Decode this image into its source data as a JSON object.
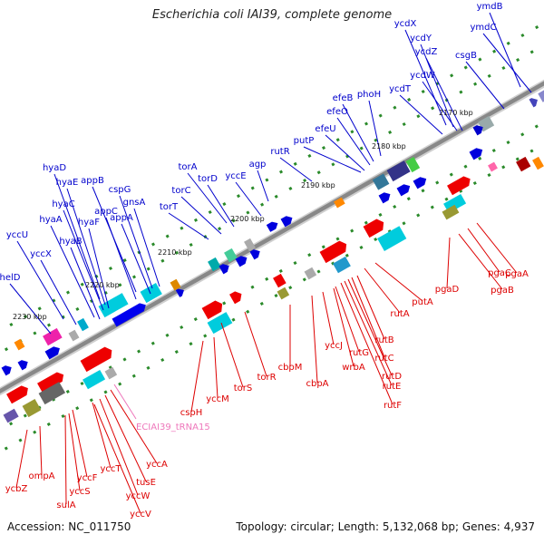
{
  "title": "Escherichia coli IAI39, complete genome",
  "footer": {
    "accession": "Accession: NC_011750",
    "summary": "Topology: circular; Length: 5,132,068 bp; Genes: 4,937"
  },
  "colors": {
    "forward_label": "#0000cc",
    "reverse_label": "#dd0000",
    "trna_label": "#ee77bb",
    "backbone": "#888888"
  },
  "kbp_marks": [
    "2170 kbp",
    "2180 kbp",
    "2190 kbp",
    "2200 kbp",
    "2210 kbp",
    "2220 kbp",
    "2230 kbp"
  ],
  "forward_genes": [
    "ymdB",
    "ycdX",
    "ymdC",
    "ycdY",
    "ycdZ",
    "csgB",
    "ycdW",
    "ycdT",
    "phoH",
    "efeB",
    "efeO",
    "efeU",
    "putP",
    "rutR",
    "agp",
    "yccE",
    "torA",
    "torD",
    "torC",
    "torT",
    "appB",
    "cspG",
    "gnsA",
    "appC",
    "appA",
    "hyaD",
    "hyaE",
    "hyaC",
    "hyaF",
    "hyaA",
    "hyaB",
    "yccU",
    "yccX",
    "helD"
  ],
  "reverse_genes": [
    "pgaA",
    "pgaC",
    "pgaB",
    "pgaD",
    "putA",
    "rutA",
    "rutB",
    "rutC",
    "rutD",
    "rutE",
    "rutF",
    "wrbA",
    "rutG",
    "yccJ",
    "cbpA",
    "cbpM",
    "torR",
    "torS",
    "yccM",
    "cspH",
    "yccA",
    "tusE",
    "yccW",
    "yccV",
    "yccT",
    "yccF",
    "yccS",
    "sulA",
    "ompA",
    "ycbZ"
  ],
  "trna_genes": [
    "ECIAI39_tRNA15"
  ]
}
